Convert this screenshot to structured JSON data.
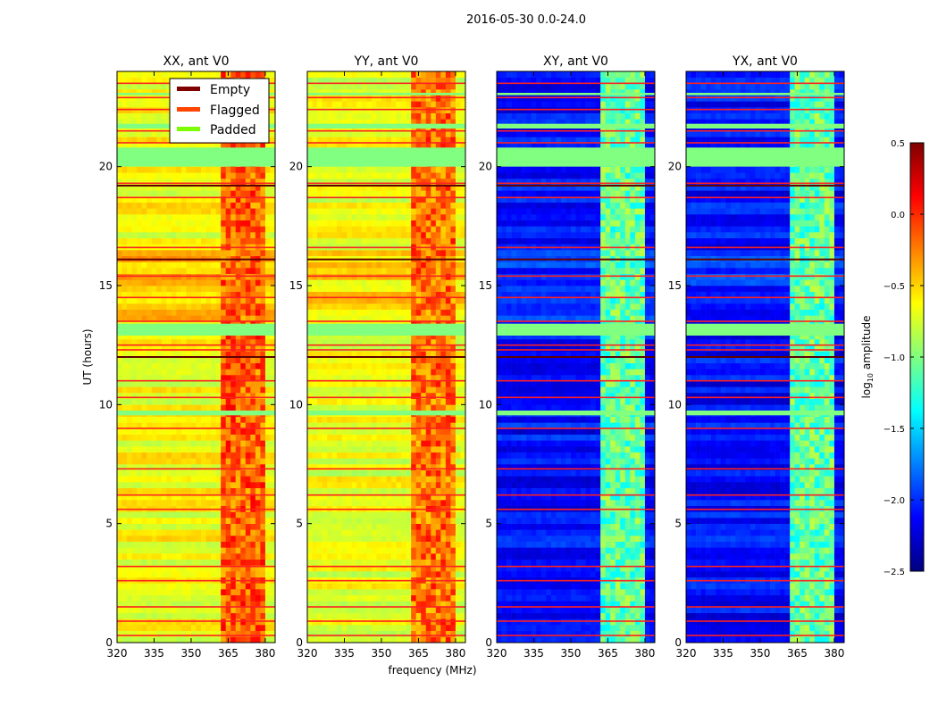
{
  "chart_data": {
    "type": "heatmap",
    "title": "2016-05-30 0.0-24.0",
    "xlabel": "frequency (MHz)",
    "ylabel": "UT (hours)",
    "xlim": [
      320,
      384
    ],
    "ylim": [
      0,
      24
    ],
    "xticks": [
      320,
      335,
      350,
      365,
      380
    ],
    "yticks": [
      0,
      5,
      10,
      15,
      20
    ],
    "panels": [
      {
        "title": "XX, ant V0",
        "base_log_amp": -0.65,
        "rfi_log_amp": -0.15,
        "day_boost": -0.45
      },
      {
        "title": "YY, ant V0",
        "base_log_amp": -0.7,
        "rfi_log_amp": -0.2,
        "day_boost": -0.55
      },
      {
        "title": "XY, ant V0",
        "base_log_amp": -2.1,
        "rfi_log_amp": -1.1,
        "day_boost": -2.0
      },
      {
        "title": "YX, ant V0",
        "base_log_amp": -2.1,
        "rfi_log_amp": -1.1,
        "day_boost": -2.0
      }
    ],
    "rfi_band_mhz": [
      362,
      380
    ],
    "day_hours": [
      13.5,
      16.5
    ],
    "padded_hours": [
      [
        20.0,
        20.8
      ],
      [
        12.9,
        13.4
      ],
      [
        9.55,
        9.75
      ],
      [
        21.6,
        21.8
      ],
      [
        23.0,
        23.1
      ]
    ],
    "flagged_hours": [
      0.3,
      0.9,
      1.5,
      2.6,
      3.2,
      5.6,
      6.2,
      7.3,
      9.0,
      10.3,
      11.0,
      12.3,
      12.5,
      13.5,
      14.5,
      15.4,
      16.6,
      18.7,
      19.3,
      21.0,
      21.5,
      22.4,
      22.9,
      23.5
    ],
    "empty_hours": [
      16.1,
      19.2,
      12.0
    ],
    "legend": {
      "placement": "top-right of first panel",
      "entries": [
        {
          "label": "Empty",
          "color": "#800000"
        },
        {
          "label": "Flagged",
          "color": "#ff4500"
        },
        {
          "label": "Padded",
          "color": "#7cfc00"
        }
      ]
    },
    "colorbar": {
      "label_prefix": "log",
      "label_sub": "10",
      "label_suffix": " amplitude",
      "range": [
        -2.5,
        0.5
      ],
      "ticks": [
        "0.5",
        "0.0",
        "−0.5",
        "−1.0",
        "−1.5",
        "−2.0",
        "−2.5"
      ],
      "colormap": "jet"
    }
  }
}
